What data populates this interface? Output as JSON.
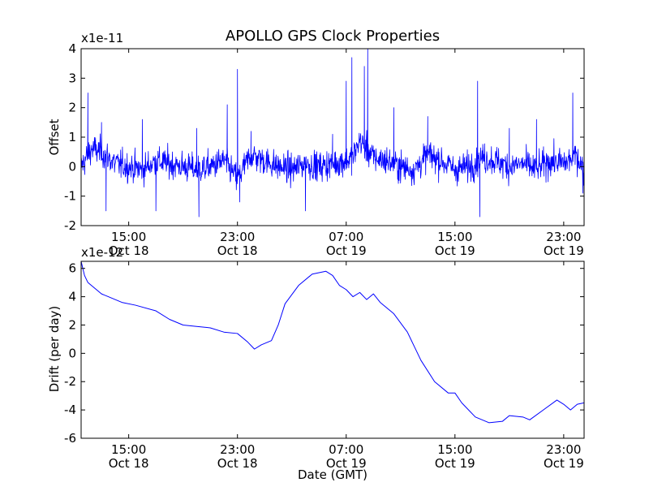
{
  "figure_title": "APOLLO GPS Clock Properties",
  "xlabel": "Date (GMT)",
  "colors": {
    "line": "#0000ff",
    "axes": "#000000",
    "background": "#ffffff"
  },
  "chart_data": [
    {
      "type": "line",
      "title": "APOLLO GPS Clock Properties",
      "ylabel": "Offset",
      "scale_label": "x1e-11",
      "xlabel": "",
      "xlim": [
        "Oct 18 11:30",
        "Oct 20 00:30"
      ],
      "ylim": [
        -2,
        4
      ],
      "yticks": [
        -2,
        -1,
        0,
        1,
        2,
        3,
        4
      ],
      "xticks": [
        {
          "time": "15:00",
          "date": "Oct 18"
        },
        {
          "time": "23:00",
          "date": "Oct 18"
        },
        {
          "time": "07:00",
          "date": "Oct 19"
        },
        {
          "time": "15:00",
          "date": "Oct 19"
        },
        {
          "time": "23:00",
          "date": "Oct 19"
        }
      ],
      "grid": false,
      "noise_scale": 0.35,
      "series": [
        {
          "x": [
            "Oct 18 11:30",
            "Oct 18 12:15",
            "Oct 18 13:00",
            "Oct 18 14:00",
            "Oct 18 15:00",
            "Oct 18 16:00",
            "Oct 18 17:00",
            "Oct 18 18:00",
            "Oct 18 19:00",
            "Oct 18 20:00",
            "Oct 18 21:00",
            "Oct 18 22:00",
            "Oct 18 23:00",
            "Oct 19 00:00",
            "Oct 19 01:00",
            "Oct 19 02:00",
            "Oct 19 03:00",
            "Oct 19 04:00",
            "Oct 19 05:00",
            "Oct 19 06:00",
            "Oct 19 07:00",
            "Oct 19 07:30",
            "Oct 19 08:00",
            "Oct 19 09:00",
            "Oct 19 10:00",
            "Oct 19 11:00",
            "Oct 19 12:00",
            "Oct 19 13:00",
            "Oct 19 14:00",
            "Oct 19 15:00",
            "Oct 19 16:00",
            "Oct 19 17:00",
            "Oct 19 18:00",
            "Oct 19 19:00",
            "Oct 19 20:00",
            "Oct 19 21:00",
            "Oct 19 22:00",
            "Oct 19 23:00",
            "Oct 20 00:00",
            "Oct 20 00:30"
          ],
          "y": [
            0.0,
            0.6,
            0.5,
            0.1,
            0.0,
            -0.1,
            0.2,
            0.1,
            0.0,
            -0.1,
            0.0,
            0.2,
            -0.4,
            0.4,
            0.2,
            0.0,
            -0.1,
            0.1,
            0.0,
            0.1,
            0.2,
            0.3,
            0.9,
            0.3,
            0.2,
            0.0,
            -0.1,
            0.4,
            0.2,
            -0.1,
            0.0,
            0.3,
            0.2,
            0.0,
            0.1,
            -0.1,
            0.2,
            0.1,
            0.4,
            -0.2
          ]
        }
      ],
      "spikes": [
        {
          "x": "Oct 18 12:00",
          "y": 2.5
        },
        {
          "x": "Oct 18 13:00",
          "y": 1.5
        },
        {
          "x": "Oct 18 13:20",
          "y": -1.5
        },
        {
          "x": "Oct 18 16:00",
          "y": 1.6
        },
        {
          "x": "Oct 18 17:00",
          "y": -1.5
        },
        {
          "x": "Oct 18 20:00",
          "y": 1.3
        },
        {
          "x": "Oct 18 20:10",
          "y": -1.7
        },
        {
          "x": "Oct 18 22:15",
          "y": 2.1
        },
        {
          "x": "Oct 18 23:00",
          "y": 3.3
        },
        {
          "x": "Oct 18 23:10",
          "y": -1.2
        },
        {
          "x": "Oct 19 00:00",
          "y": 1.2
        },
        {
          "x": "Oct 19 04:00",
          "y": -1.5
        },
        {
          "x": "Oct 19 06:00",
          "y": 1.1
        },
        {
          "x": "Oct 19 07:00",
          "y": 2.9
        },
        {
          "x": "Oct 19 07:25",
          "y": 3.7
        },
        {
          "x": "Oct 19 08:20",
          "y": 3.4
        },
        {
          "x": "Oct 19 08:35",
          "y": 4.0
        },
        {
          "x": "Oct 19 10:30",
          "y": 2.0
        },
        {
          "x": "Oct 19 13:00",
          "y": 1.7
        },
        {
          "x": "Oct 19 16:40",
          "y": 2.9
        },
        {
          "x": "Oct 19 16:50",
          "y": -1.7
        },
        {
          "x": "Oct 19 19:00",
          "y": 1.3
        },
        {
          "x": "Oct 19 21:00",
          "y": 1.6
        },
        {
          "x": "Oct 19 23:40",
          "y": 2.5
        },
        {
          "x": "Oct 20 00:25",
          "y": -0.9
        }
      ]
    },
    {
      "type": "line",
      "title": "",
      "ylabel": "Drift (per day)",
      "scale_label": "x1e-12",
      "xlabel": "Date (GMT)",
      "xlim": [
        "Oct 18 11:30",
        "Oct 20 00:30"
      ],
      "ylim": [
        -6,
        6.5
      ],
      "yticks": [
        -6,
        -4,
        -2,
        0,
        2,
        4,
        6
      ],
      "xticks": [
        {
          "time": "15:00",
          "date": "Oct 18"
        },
        {
          "time": "23:00",
          "date": "Oct 18"
        },
        {
          "time": "07:00",
          "date": "Oct 19"
        },
        {
          "time": "15:00",
          "date": "Oct 19"
        },
        {
          "time": "23:00",
          "date": "Oct 19"
        }
      ],
      "grid": false,
      "series": [
        {
          "x": [
            "Oct 18 11:30",
            "Oct 18 11:45",
            "Oct 18 12:00",
            "Oct 18 12:30",
            "Oct 18 13:00",
            "Oct 18 13:30",
            "Oct 18 14:30",
            "Oct 18 15:30",
            "Oct 18 17:00",
            "Oct 18 18:00",
            "Oct 18 19:00",
            "Oct 18 20:00",
            "Oct 18 21:00",
            "Oct 18 22:00",
            "Oct 18 23:00",
            "Oct 18 23:45",
            "Oct 19 00:15",
            "Oct 19 00:45",
            "Oct 19 01:30",
            "Oct 19 02:00",
            "Oct 19 02:30",
            "Oct 19 03:30",
            "Oct 19 04:30",
            "Oct 19 05:30",
            "Oct 19 06:00",
            "Oct 19 06:30",
            "Oct 19 07:00",
            "Oct 19 07:30",
            "Oct 19 08:00",
            "Oct 19 08:30",
            "Oct 19 09:00",
            "Oct 19 09:30",
            "Oct 19 10:30",
            "Oct 19 11:30",
            "Oct 19 12:30",
            "Oct 19 13:30",
            "Oct 19 14:30",
            "Oct 19 15:00",
            "Oct 19 15:30",
            "Oct 19 16:30",
            "Oct 19 17:30",
            "Oct 19 18:30",
            "Oct 19 19:00",
            "Oct 19 20:00",
            "Oct 19 20:30",
            "Oct 19 21:30",
            "Oct 19 22:30",
            "Oct 19 23:00",
            "Oct 19 23:30",
            "Oct 20 00:00",
            "Oct 20 00:30"
          ],
          "y": [
            6.5,
            5.5,
            5.0,
            4.6,
            4.2,
            4.0,
            3.6,
            3.4,
            3.0,
            2.4,
            2.0,
            1.9,
            1.8,
            1.5,
            1.4,
            0.8,
            0.3,
            0.6,
            0.9,
            2.0,
            3.5,
            4.8,
            5.6,
            5.8,
            5.5,
            4.8,
            4.5,
            4.0,
            4.3,
            3.8,
            4.2,
            3.6,
            2.8,
            1.5,
            -0.5,
            -2.0,
            -2.8,
            -2.8,
            -3.5,
            -4.5,
            -4.9,
            -4.8,
            -4.4,
            -4.5,
            -4.7,
            -4.0,
            -3.3,
            -3.6,
            -4.0,
            -3.6,
            -3.5
          ]
        }
      ]
    }
  ]
}
